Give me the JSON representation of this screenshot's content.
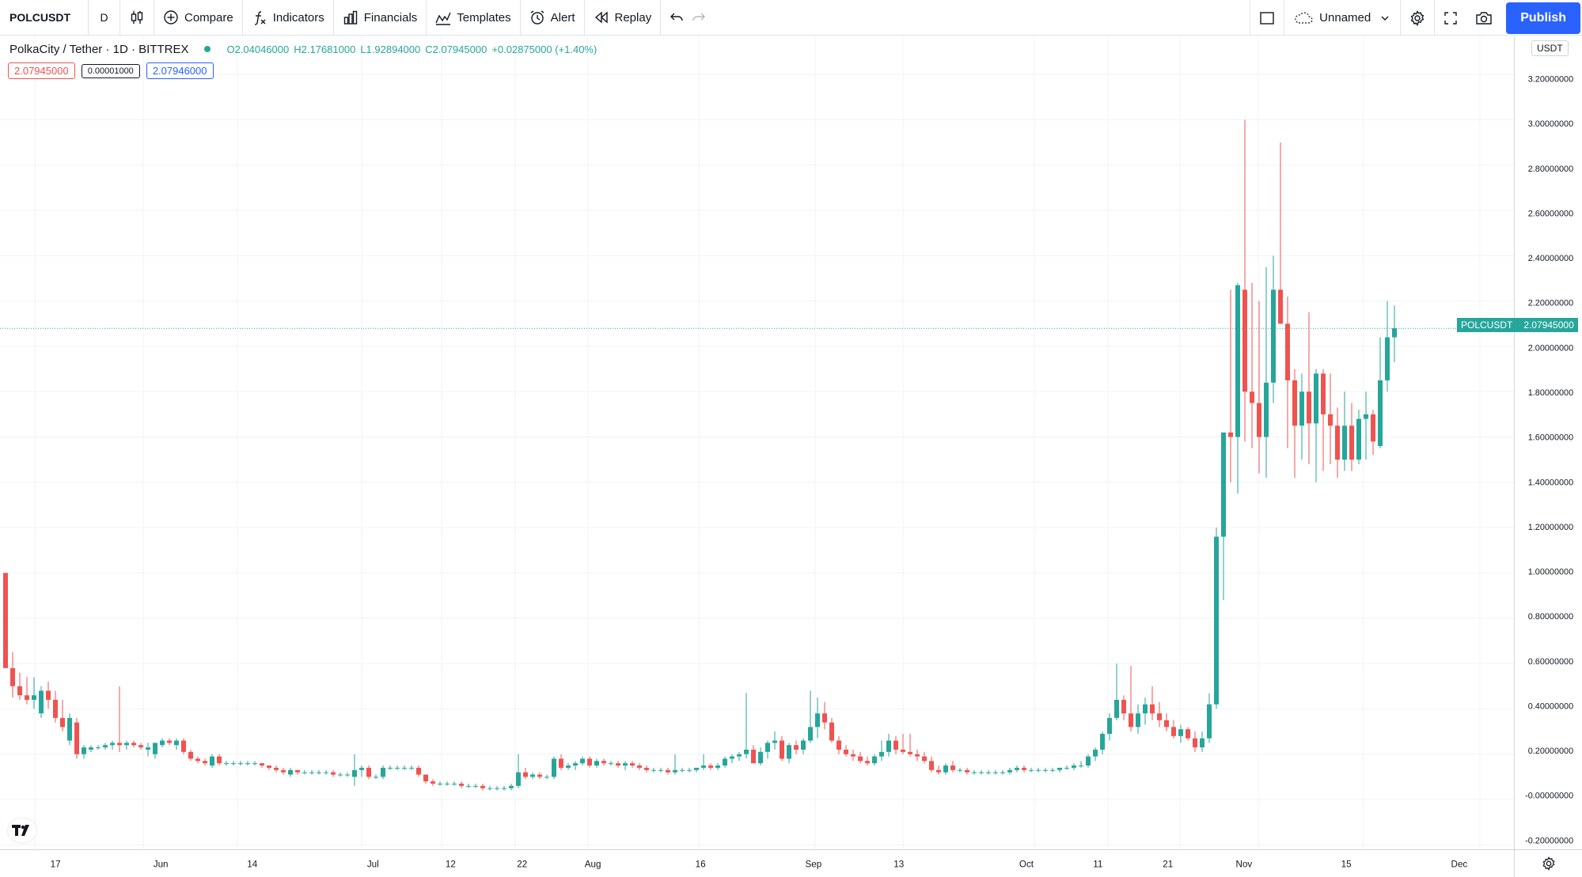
{
  "toolbar": {
    "symbol": "POLCUSDT",
    "interval": "D",
    "compare_label": "Compare",
    "indicators_label": "Indicators",
    "financials_label": "Financials",
    "templates_label": "Templates",
    "alert_label": "Alert",
    "replay_label": "Replay",
    "layout_name": "Unnamed",
    "publish_label": "Publish"
  },
  "legend": {
    "title": "PolkaCity / Tether · 1D · BITTREX",
    "open": "O2.04046000",
    "high": "H2.17681000",
    "low": "L1.92894000",
    "close": "C2.07945000",
    "change": "+0.02875000 (+1.40%)"
  },
  "quote": {
    "sell": "2.07945000",
    "spread": "0.00001000",
    "buy": "2.07946000"
  },
  "price_axis": {
    "currency": "USDT",
    "last_symbol": "POLCUSDT",
    "last_price": "2.07945000"
  },
  "colors": {
    "up": "#26a69a",
    "down": "#ef5350",
    "grid": "#f0f3fa",
    "accent": "#2962ff"
  },
  "chart_data": {
    "type": "candlestick",
    "ylim": [
      -0.2,
      3.2
    ],
    "y_ticks": [
      "3.20000000",
      "3.00000000",
      "2.80000000",
      "2.60000000",
      "2.40000000",
      "2.20000000",
      "2.00000000",
      "1.80000000",
      "1.60000000",
      "1.40000000",
      "1.20000000",
      "1.00000000",
      "0.80000000",
      "0.60000000",
      "0.40000000",
      "0.20000000",
      "-0.00000000",
      "-0.20000000"
    ],
    "x_ticks": [
      "17",
      "Jun",
      "14",
      "Jul",
      "12",
      "22",
      "Aug",
      "16",
      "Sep",
      "13",
      "Oct",
      "11",
      "21",
      "Nov",
      "15",
      "Dec"
    ],
    "last_price": 2.07945,
    "candles": [
      [
        1.0,
        1.0,
        0.6,
        0.58
      ],
      [
        0.58,
        0.65,
        0.45,
        0.5
      ],
      [
        0.5,
        0.56,
        0.44,
        0.46
      ],
      [
        0.46,
        0.54,
        0.42,
        0.44
      ],
      [
        0.44,
        0.54,
        0.4,
        0.46
      ],
      [
        0.38,
        0.5,
        0.36,
        0.48
      ],
      [
        0.48,
        0.52,
        0.4,
        0.44
      ],
      [
        0.44,
        0.48,
        0.34,
        0.36
      ],
      [
        0.36,
        0.44,
        0.3,
        0.32
      ],
      [
        0.26,
        0.38,
        0.24,
        0.36
      ],
      [
        0.34,
        0.36,
        0.18,
        0.2
      ],
      [
        0.2,
        0.24,
        0.18,
        0.23
      ],
      [
        0.22,
        0.24,
        0.21,
        0.23
      ],
      [
        0.23,
        0.24,
        0.22,
        0.23
      ],
      [
        0.23,
        0.25,
        0.22,
        0.24
      ],
      [
        0.24,
        0.26,
        0.22,
        0.25
      ],
      [
        0.25,
        0.5,
        0.21,
        0.24
      ],
      [
        0.24,
        0.26,
        0.22,
        0.25
      ],
      [
        0.25,
        0.26,
        0.23,
        0.24
      ],
      [
        0.24,
        0.25,
        0.22,
        0.23
      ],
      [
        0.22,
        0.25,
        0.19,
        0.23
      ],
      [
        0.2,
        0.24,
        0.18,
        0.25
      ],
      [
        0.24,
        0.27,
        0.23,
        0.26
      ],
      [
        0.26,
        0.27,
        0.24,
        0.25
      ],
      [
        0.24,
        0.27,
        0.22,
        0.26
      ],
      [
        0.26,
        0.27,
        0.2,
        0.21
      ],
      [
        0.21,
        0.22,
        0.17,
        0.18
      ],
      [
        0.18,
        0.19,
        0.16,
        0.17
      ],
      [
        0.17,
        0.18,
        0.15,
        0.16
      ],
      [
        0.15,
        0.2,
        0.14,
        0.19
      ],
      [
        0.19,
        0.2,
        0.15,
        0.16
      ],
      [
        0.16,
        0.17,
        0.15,
        0.16
      ],
      [
        0.16,
        0.17,
        0.15,
        0.16
      ],
      [
        0.16,
        0.17,
        0.15,
        0.16
      ],
      [
        0.16,
        0.17,
        0.15,
        0.16
      ],
      [
        0.16,
        0.17,
        0.15,
        0.16
      ],
      [
        0.16,
        0.16,
        0.14,
        0.15
      ],
      [
        0.15,
        0.15,
        0.13,
        0.14
      ],
      [
        0.14,
        0.15,
        0.12,
        0.13
      ],
      [
        0.13,
        0.14,
        0.11,
        0.12
      ],
      [
        0.11,
        0.14,
        0.1,
        0.13
      ],
      [
        0.13,
        0.13,
        0.11,
        0.12
      ],
      [
        0.12,
        0.13,
        0.11,
        0.12
      ],
      [
        0.12,
        0.13,
        0.11,
        0.12
      ],
      [
        0.12,
        0.13,
        0.11,
        0.12
      ],
      [
        0.12,
        0.13,
        0.11,
        0.12
      ],
      [
        0.12,
        0.13,
        0.1,
        0.11
      ],
      [
        0.11,
        0.12,
        0.1,
        0.11
      ],
      [
        0.11,
        0.12,
        0.1,
        0.11
      ],
      [
        0.1,
        0.2,
        0.06,
        0.13
      ],
      [
        0.13,
        0.15,
        0.1,
        0.14
      ],
      [
        0.14,
        0.15,
        0.09,
        0.1
      ],
      [
        0.1,
        0.11,
        0.09,
        0.1
      ],
      [
        0.1,
        0.15,
        0.09,
        0.14
      ],
      [
        0.14,
        0.15,
        0.13,
        0.14
      ],
      [
        0.14,
        0.15,
        0.13,
        0.14
      ],
      [
        0.14,
        0.15,
        0.13,
        0.14
      ],
      [
        0.14,
        0.15,
        0.13,
        0.14
      ],
      [
        0.14,
        0.15,
        0.1,
        0.11
      ],
      [
        0.11,
        0.11,
        0.07,
        0.08
      ],
      [
        0.08,
        0.09,
        0.06,
        0.07
      ],
      [
        0.07,
        0.08,
        0.06,
        0.07
      ],
      [
        0.07,
        0.08,
        0.06,
        0.07
      ],
      [
        0.07,
        0.08,
        0.06,
        0.07
      ],
      [
        0.07,
        0.08,
        0.05,
        0.06
      ],
      [
        0.06,
        0.07,
        0.05,
        0.06
      ],
      [
        0.06,
        0.07,
        0.05,
        0.06
      ],
      [
        0.06,
        0.07,
        0.04,
        0.05
      ],
      [
        0.05,
        0.06,
        0.04,
        0.05
      ],
      [
        0.05,
        0.06,
        0.04,
        0.05
      ],
      [
        0.05,
        0.06,
        0.04,
        0.05
      ],
      [
        0.05,
        0.07,
        0.04,
        0.06
      ],
      [
        0.06,
        0.2,
        0.05,
        0.12
      ],
      [
        0.12,
        0.14,
        0.09,
        0.1
      ],
      [
        0.1,
        0.12,
        0.09,
        0.11
      ],
      [
        0.11,
        0.12,
        0.09,
        0.1
      ],
      [
        0.1,
        0.11,
        0.09,
        0.1
      ],
      [
        0.1,
        0.19,
        0.09,
        0.18
      ],
      [
        0.18,
        0.2,
        0.13,
        0.14
      ],
      [
        0.14,
        0.16,
        0.13,
        0.15
      ],
      [
        0.15,
        0.17,
        0.13,
        0.16
      ],
      [
        0.16,
        0.19,
        0.15,
        0.18
      ],
      [
        0.18,
        0.19,
        0.14,
        0.15
      ],
      [
        0.15,
        0.18,
        0.14,
        0.17
      ],
      [
        0.17,
        0.18,
        0.15,
        0.16
      ],
      [
        0.16,
        0.17,
        0.15,
        0.16
      ],
      [
        0.16,
        0.17,
        0.14,
        0.15
      ],
      [
        0.15,
        0.17,
        0.13,
        0.16
      ],
      [
        0.16,
        0.17,
        0.14,
        0.15
      ],
      [
        0.15,
        0.16,
        0.13,
        0.14
      ],
      [
        0.14,
        0.15,
        0.12,
        0.13
      ],
      [
        0.13,
        0.14,
        0.12,
        0.13
      ],
      [
        0.13,
        0.14,
        0.12,
        0.13
      ],
      [
        0.13,
        0.14,
        0.11,
        0.12
      ],
      [
        0.12,
        0.2,
        0.11,
        0.13
      ],
      [
        0.13,
        0.14,
        0.12,
        0.13
      ],
      [
        0.13,
        0.14,
        0.12,
        0.13
      ],
      [
        0.13,
        0.14,
        0.12,
        0.14
      ],
      [
        0.14,
        0.2,
        0.13,
        0.15
      ],
      [
        0.15,
        0.16,
        0.13,
        0.14
      ],
      [
        0.14,
        0.16,
        0.13,
        0.15
      ],
      [
        0.15,
        0.19,
        0.14,
        0.18
      ],
      [
        0.18,
        0.2,
        0.16,
        0.19
      ],
      [
        0.19,
        0.21,
        0.17,
        0.2
      ],
      [
        0.2,
        0.47,
        0.18,
        0.22
      ],
      [
        0.22,
        0.24,
        0.17,
        0.16
      ],
      [
        0.16,
        0.23,
        0.15,
        0.21
      ],
      [
        0.21,
        0.26,
        0.18,
        0.25
      ],
      [
        0.25,
        0.3,
        0.22,
        0.26
      ],
      [
        0.26,
        0.28,
        0.17,
        0.18
      ],
      [
        0.18,
        0.25,
        0.16,
        0.24
      ],
      [
        0.24,
        0.26,
        0.2,
        0.22
      ],
      [
        0.22,
        0.27,
        0.2,
        0.26
      ],
      [
        0.26,
        0.48,
        0.25,
        0.32
      ],
      [
        0.32,
        0.45,
        0.27,
        0.38
      ],
      [
        0.38,
        0.43,
        0.31,
        0.34
      ],
      [
        0.34,
        0.36,
        0.25,
        0.26
      ],
      [
        0.26,
        0.28,
        0.2,
        0.22
      ],
      [
        0.22,
        0.24,
        0.19,
        0.2
      ],
      [
        0.2,
        0.22,
        0.17,
        0.19
      ],
      [
        0.19,
        0.21,
        0.16,
        0.17
      ],
      [
        0.17,
        0.19,
        0.15,
        0.16
      ],
      [
        0.16,
        0.2,
        0.15,
        0.19
      ],
      [
        0.19,
        0.26,
        0.17,
        0.21
      ],
      [
        0.21,
        0.29,
        0.19,
        0.26
      ],
      [
        0.26,
        0.28,
        0.2,
        0.22
      ],
      [
        0.22,
        0.29,
        0.2,
        0.21
      ],
      [
        0.21,
        0.29,
        0.19,
        0.2
      ],
      [
        0.2,
        0.22,
        0.17,
        0.19
      ],
      [
        0.19,
        0.21,
        0.16,
        0.17
      ],
      [
        0.17,
        0.19,
        0.12,
        0.13
      ],
      [
        0.13,
        0.15,
        0.11,
        0.12
      ],
      [
        0.12,
        0.16,
        0.11,
        0.15
      ],
      [
        0.15,
        0.17,
        0.12,
        0.13
      ],
      [
        0.13,
        0.14,
        0.12,
        0.13
      ],
      [
        0.13,
        0.14,
        0.11,
        0.12
      ],
      [
        0.12,
        0.13,
        0.11,
        0.12
      ],
      [
        0.12,
        0.13,
        0.11,
        0.12
      ],
      [
        0.12,
        0.13,
        0.11,
        0.12
      ],
      [
        0.12,
        0.13,
        0.11,
        0.12
      ],
      [
        0.12,
        0.13,
        0.11,
        0.12
      ],
      [
        0.12,
        0.14,
        0.11,
        0.13
      ],
      [
        0.13,
        0.15,
        0.12,
        0.14
      ],
      [
        0.14,
        0.15,
        0.12,
        0.13
      ],
      [
        0.13,
        0.14,
        0.12,
        0.13
      ],
      [
        0.13,
        0.14,
        0.12,
        0.13
      ],
      [
        0.13,
        0.14,
        0.12,
        0.13
      ],
      [
        0.13,
        0.14,
        0.12,
        0.13
      ],
      [
        0.13,
        0.14,
        0.12,
        0.14
      ],
      [
        0.14,
        0.15,
        0.13,
        0.14
      ],
      [
        0.14,
        0.16,
        0.13,
        0.15
      ],
      [
        0.15,
        0.17,
        0.14,
        0.15
      ],
      [
        0.15,
        0.2,
        0.14,
        0.19
      ],
      [
        0.19,
        0.23,
        0.17,
        0.22
      ],
      [
        0.22,
        0.3,
        0.2,
        0.29
      ],
      [
        0.29,
        0.38,
        0.26,
        0.36
      ],
      [
        0.36,
        0.6,
        0.35,
        0.44
      ],
      [
        0.44,
        0.46,
        0.35,
        0.38
      ],
      [
        0.38,
        0.59,
        0.3,
        0.32
      ],
      [
        0.32,
        0.42,
        0.29,
        0.38
      ],
      [
        0.38,
        0.45,
        0.33,
        0.42
      ],
      [
        0.42,
        0.5,
        0.35,
        0.38
      ],
      [
        0.38,
        0.43,
        0.32,
        0.35
      ],
      [
        0.35,
        0.38,
        0.3,
        0.32
      ],
      [
        0.32,
        0.35,
        0.27,
        0.28
      ],
      [
        0.28,
        0.33,
        0.25,
        0.31
      ],
      [
        0.31,
        0.32,
        0.26,
        0.27
      ],
      [
        0.27,
        0.3,
        0.21,
        0.23
      ],
      [
        0.23,
        0.3,
        0.21,
        0.27
      ],
      [
        0.27,
        0.47,
        0.25,
        0.42
      ],
      [
        0.42,
        1.2,
        0.4,
        1.16
      ],
      [
        1.16,
        1.6,
        0.88,
        1.62
      ],
      [
        1.62,
        2.25,
        1.4,
        1.6
      ],
      [
        1.6,
        2.28,
        1.35,
        2.27
      ],
      [
        2.25,
        3.0,
        1.58,
        1.8
      ],
      [
        1.8,
        2.28,
        1.55,
        1.75
      ],
      [
        1.75,
        2.2,
        1.44,
        1.6
      ],
      [
        1.6,
        2.35,
        1.42,
        1.84
      ],
      [
        1.84,
        2.4,
        1.75,
        2.25
      ],
      [
        2.25,
        2.9,
        2.1,
        2.1
      ],
      [
        2.1,
        2.22,
        1.55,
        1.85
      ],
      [
        1.85,
        1.9,
        1.42,
        1.65
      ],
      [
        1.65,
        1.88,
        1.5,
        1.8
      ],
      [
        1.8,
        2.15,
        1.48,
        1.66
      ],
      [
        1.66,
        1.9,
        1.4,
        1.88
      ],
      [
        1.88,
        1.9,
        1.45,
        1.7
      ],
      [
        1.7,
        1.88,
        1.48,
        1.65
      ],
      [
        1.65,
        1.73,
        1.42,
        1.5
      ],
      [
        1.5,
        1.8,
        1.45,
        1.65
      ],
      [
        1.65,
        1.75,
        1.45,
        1.5
      ],
      [
        1.5,
        1.72,
        1.48,
        1.68
      ],
      [
        1.68,
        1.8,
        1.5,
        1.7
      ],
      [
        1.7,
        1.72,
        1.52,
        1.58
      ],
      [
        1.56,
        2.04,
        1.55,
        1.85
      ],
      [
        1.85,
        2.2,
        1.8,
        2.04
      ],
      [
        2.04,
        2.18,
        1.93,
        2.08
      ]
    ]
  }
}
